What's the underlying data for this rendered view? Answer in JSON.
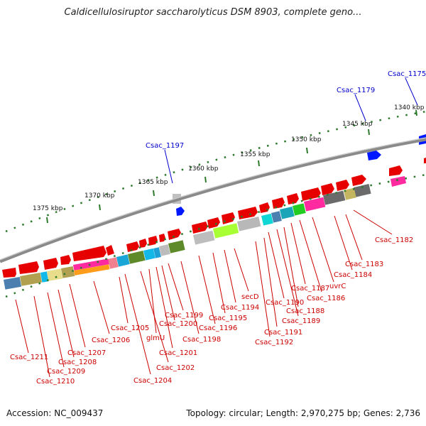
{
  "title": "Caldicellulosiruptor saccharolyticus DSM 8903, complete geno...",
  "footer": {
    "accession": "Accession: NC_009437",
    "topology": "Topology: circular; Length: 2,970,275 bp; Genes: 2,736"
  },
  "colors": {
    "backbone": "#8a8a8a",
    "gene_forward": "#e60000",
    "label_red": "#cc0000",
    "label_blue": "#0000cc",
    "ruler_ticks": "#2d7a2d"
  },
  "ruler_labels": [
    "1340 kbp",
    "1345 kbp",
    "1350 kbp",
    "1355 kbp",
    "1360 kbp",
    "1365 kbp",
    "1370 kbp",
    "1375 kbp"
  ],
  "top_labels": [
    "Csac_1175",
    "Csac_1179",
    "Csac_1197"
  ],
  "bottom_labels": [
    "Csac_1182",
    "Csac_1183",
    "Csac_1184",
    "uvrC",
    "Csac_1186",
    "Csac_1187",
    "Csac_1188",
    "Csac_1189",
    "Csac_1190",
    "Csac_1191",
    "Csac_1192",
    "secD",
    "Csac_1194",
    "Csac_1195",
    "Csac_1196",
    "Csac_1198",
    "Csac_1199",
    "Csac_1200",
    "Csac_1201",
    "glmU",
    "Csac_1202",
    "Csac_1204",
    "Csac_1205",
    "Csac_1206",
    "Csac_1207",
    "Csac_1208",
    "Csac_1209",
    "Csac_1210",
    "Csac_1211"
  ]
}
